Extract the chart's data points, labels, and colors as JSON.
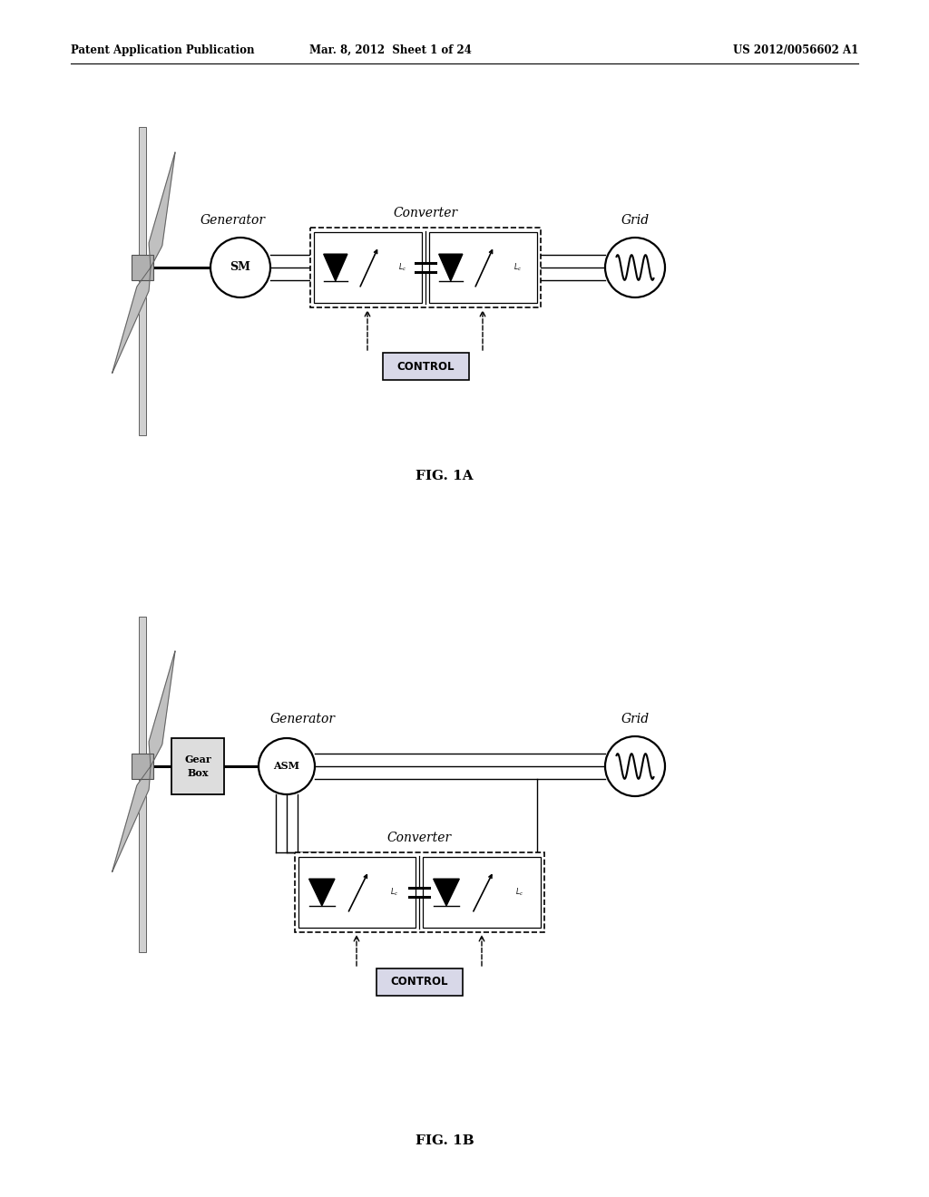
{
  "bg_color": "#ffffff",
  "header_left": "Patent Application Publication",
  "header_mid": "Mar. 8, 2012  Sheet 1 of 24",
  "header_right": "US 2012/0056602 A1",
  "fig1a_label": "FIG. 1A",
  "fig1b_label": "FIG. 1B",
  "gen_label_1a": "Generator",
  "conv_label_1a": "Converter",
  "grid_label_1a": "Grid",
  "sm_label": "SM",
  "control_label": "CONTROL",
  "gen_label_1b": "Generator",
  "conv_label_1b": "Converter",
  "grid_label_1b": "Grid",
  "asm_label": "ASM",
  "control_label_1b": "CONTROL",
  "gearbox_label": "Gear\nBox",
  "lc_label": "L_c"
}
